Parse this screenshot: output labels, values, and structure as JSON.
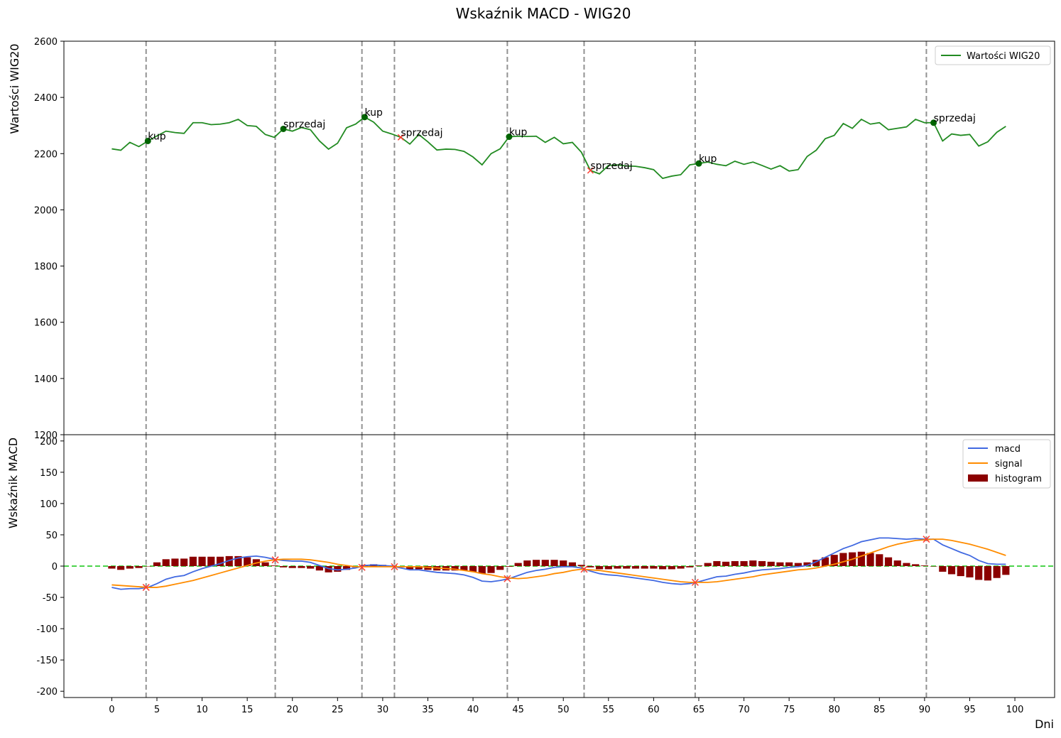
{
  "chart_data": {
    "type": "line",
    "title": "Wskaźnik MACD - WIG20",
    "xlabel": "Dni",
    "x_ticks": [
      0,
      5,
      10,
      15,
      20,
      25,
      30,
      35,
      40,
      45,
      50,
      55,
      60,
      65,
      70,
      75,
      80,
      85,
      90,
      95,
      100
    ],
    "xlim": [
      -5.3,
      104.4
    ],
    "signal_lines": [
      3.8,
      18.1,
      27.7,
      31.3,
      43.8,
      52.3,
      64.6,
      90.2
    ],
    "colors": {
      "wig20": "#228b22",
      "macd": "#4169e1",
      "signal": "#ff8c00",
      "histogram": "#8b0000",
      "zero_line": "#32cd32",
      "vertical_lines": "#808080",
      "marker_buy": "#006400",
      "marker_cross": "#ff3b30"
    },
    "top": {
      "ylabel": "Wartości WIG20",
      "ylim": [
        1200,
        2600
      ],
      "y_ticks": [
        1200,
        1400,
        1600,
        1800,
        2000,
        2200,
        2400,
        2600
      ],
      "legend": [
        "Wartości WIG20"
      ],
      "legend_position": "top-right",
      "series": [
        {
          "name": "Wartości WIG20",
          "x": [
            0,
            1,
            2,
            3,
            4,
            5,
            6,
            7,
            8,
            9,
            10,
            11,
            12,
            13,
            14,
            15,
            16,
            17,
            18,
            19,
            20,
            21,
            22,
            23,
            24,
            25,
            26,
            27,
            28,
            29,
            30,
            31,
            32,
            33,
            34,
            35,
            36,
            37,
            38,
            39,
            40,
            41,
            42,
            43,
            44,
            45,
            46,
            47,
            48,
            49,
            50,
            51,
            52,
            53,
            54,
            55,
            56,
            57,
            58,
            59,
            60,
            61,
            62,
            63,
            64,
            65,
            66,
            67,
            68,
            69,
            70,
            71,
            72,
            73,
            74,
            75,
            76,
            77,
            78,
            79,
            80,
            81,
            82,
            83,
            84,
            85,
            86,
            87,
            88,
            89,
            90,
            91,
            92,
            93,
            94,
            95,
            96,
            97,
            98,
            99
          ],
          "values": [
            2217,
            2212,
            2240,
            2225,
            2245,
            2263,
            2280,
            2275,
            2272,
            2310,
            2310,
            2303,
            2305,
            2310,
            2322,
            2300,
            2297,
            2268,
            2258,
            2288,
            2280,
            2293,
            2285,
            2245,
            2216,
            2237,
            2292,
            2305,
            2330,
            2312,
            2280,
            2270,
            2258,
            2234,
            2268,
            2242,
            2213,
            2216,
            2215,
            2208,
            2188,
            2160,
            2200,
            2217,
            2260,
            2262,
            2261,
            2262,
            2240,
            2258,
            2235,
            2240,
            2205,
            2140,
            2128,
            2158,
            2160,
            2156,
            2155,
            2150,
            2143,
            2112,
            2120,
            2125,
            2160,
            2165,
            2170,
            2162,
            2157,
            2173,
            2162,
            2170,
            2158,
            2145,
            2157,
            2138,
            2143,
            2190,
            2212,
            2253,
            2265,
            2307,
            2290,
            2322,
            2305,
            2310,
            2285,
            2290,
            2295,
            2322,
            2310,
            2310,
            2245,
            2270,
            2265,
            2268,
            2227,
            2242,
            2276,
            2297
          ]
        }
      ],
      "annotations": [
        {
          "x": 4,
          "y": 2245,
          "text": "kup",
          "marker": "dot"
        },
        {
          "x": 19,
          "y": 2288,
          "text": "sprzedaj",
          "marker": "dot"
        },
        {
          "x": 28,
          "y": 2330,
          "text": "kup",
          "marker": "dot"
        },
        {
          "x": 32,
          "y": 2258,
          "text": "sprzedaj",
          "marker": "x"
        },
        {
          "x": 44,
          "y": 2260,
          "text": "kup",
          "marker": "dot"
        },
        {
          "x": 53,
          "y": 2140,
          "text": "sprzedaj",
          "marker": "x"
        },
        {
          "x": 65,
          "y": 2165,
          "text": "kup",
          "marker": "dot"
        },
        {
          "x": 91,
          "y": 2310,
          "text": "sprzedaj",
          "marker": "dot"
        }
      ]
    },
    "bottom": {
      "ylabel": "Wskaźnik MACD",
      "ylim": [
        -210,
        210
      ],
      "y_ticks": [
        -200,
        -150,
        -100,
        -50,
        0,
        50,
        100,
        150,
        200
      ],
      "legend": [
        "macd",
        "signal",
        "histogram"
      ],
      "legend_position": "top-right",
      "series": [
        {
          "name": "macd",
          "x": [
            0,
            1,
            2,
            3,
            4,
            5,
            6,
            7,
            8,
            9,
            10,
            11,
            12,
            13,
            14,
            15,
            16,
            17,
            18,
            19,
            20,
            21,
            22,
            23,
            24,
            25,
            26,
            27,
            28,
            29,
            30,
            31,
            32,
            33,
            34,
            35,
            36,
            37,
            38,
            39,
            40,
            41,
            42,
            43,
            44,
            45,
            46,
            47,
            48,
            49,
            50,
            51,
            52,
            53,
            54,
            55,
            56,
            57,
            58,
            59,
            60,
            61,
            62,
            63,
            64,
            65,
            66,
            67,
            68,
            69,
            70,
            71,
            72,
            73,
            74,
            75,
            76,
            77,
            78,
            79,
            80,
            81,
            82,
            83,
            84,
            85,
            86,
            87,
            88,
            89,
            90,
            91,
            92,
            93,
            94,
            95,
            96,
            97,
            98,
            99
          ],
          "values": [
            -34,
            -37,
            -36,
            -36,
            -34,
            -28,
            -21,
            -17,
            -15,
            -9,
            -4,
            0,
            4,
            9,
            13,
            15,
            16,
            14,
            11,
            9,
            8,
            8,
            6,
            1,
            -4,
            -6,
            -5,
            -3,
            1,
            2,
            1,
            0,
            -3,
            -6,
            -6,
            -8,
            -10,
            -11,
            -12,
            -14,
            -18,
            -24,
            -25,
            -23,
            -20,
            -15,
            -10,
            -7,
            -5,
            -2,
            -1,
            -1,
            -3,
            -8,
            -12,
            -14,
            -15,
            -17,
            -19,
            -21,
            -23,
            -26,
            -28,
            -29,
            -28,
            -25,
            -21,
            -17,
            -16,
            -13,
            -11,
            -8,
            -6,
            -5,
            -4,
            -2,
            -1,
            1,
            7,
            14,
            21,
            28,
            33,
            39,
            42,
            45,
            45,
            44,
            43,
            44,
            43,
            43,
            34,
            28,
            22,
            17,
            9,
            4,
            3,
            3
          ]
        },
        {
          "name": "signal",
          "x": [
            0,
            1,
            2,
            3,
            4,
            5,
            6,
            7,
            8,
            9,
            10,
            11,
            12,
            13,
            14,
            15,
            16,
            17,
            18,
            19,
            20,
            21,
            22,
            23,
            24,
            25,
            26,
            27,
            28,
            29,
            30,
            31,
            32,
            33,
            34,
            35,
            36,
            37,
            38,
            39,
            40,
            41,
            42,
            43,
            44,
            45,
            46,
            47,
            48,
            49,
            50,
            51,
            52,
            53,
            54,
            55,
            56,
            57,
            58,
            59,
            60,
            61,
            62,
            63,
            64,
            65,
            66,
            67,
            68,
            69,
            70,
            71,
            72,
            73,
            74,
            75,
            76,
            77,
            78,
            79,
            80,
            81,
            82,
            83,
            84,
            85,
            86,
            87,
            88,
            89,
            90,
            91,
            92,
            93,
            94,
            95,
            96,
            97,
            98,
            99
          ],
          "values": [
            -30,
            -31,
            -32,
            -33,
            -34,
            -34,
            -32,
            -29,
            -26,
            -23,
            -19,
            -15,
            -11,
            -7,
            -3,
            1,
            5,
            8,
            10,
            11,
            11,
            11,
            10,
            8,
            6,
            3,
            1,
            -1,
            -1,
            -1,
            -1,
            -1,
            -1,
            -1,
            -1,
            -2,
            -3,
            -4,
            -5,
            -7,
            -9,
            -12,
            -14,
            -17,
            -19,
            -20,
            -19,
            -17,
            -15,
            -12,
            -10,
            -7,
            -5,
            -6,
            -7,
            -9,
            -11,
            -13,
            -15,
            -17,
            -19,
            -21,
            -23,
            -25,
            -26,
            -26,
            -26,
            -25,
            -23,
            -21,
            -19,
            -17,
            -14,
            -12,
            -10,
            -8,
            -6,
            -5,
            -3,
            0,
            3,
            7,
            11,
            16,
            21,
            26,
            31,
            35,
            38,
            41,
            42,
            43,
            43,
            41,
            38,
            35,
            31,
            27,
            22,
            17
          ]
        },
        {
          "name": "histogram",
          "type": "bar",
          "x": [
            0,
            1,
            2,
            3,
            4,
            5,
            6,
            7,
            8,
            9,
            10,
            11,
            12,
            13,
            14,
            15,
            16,
            17,
            18,
            19,
            20,
            21,
            22,
            23,
            24,
            25,
            26,
            27,
            28,
            29,
            30,
            31,
            32,
            33,
            34,
            35,
            36,
            37,
            38,
            39,
            40,
            41,
            42,
            43,
            44,
            45,
            46,
            47,
            48,
            49,
            50,
            51,
            52,
            53,
            54,
            55,
            56,
            57,
            58,
            59,
            60,
            61,
            62,
            63,
            64,
            65,
            66,
            67,
            68,
            69,
            70,
            71,
            72,
            73,
            74,
            75,
            76,
            77,
            78,
            79,
            80,
            81,
            82,
            83,
            84,
            85,
            86,
            87,
            88,
            89,
            90,
            91,
            92,
            93,
            94,
            95,
            96,
            97,
            98,
            99
          ],
          "values": [
            -4,
            -6,
            -4,
            -3,
            0,
            6,
            11,
            12,
            12,
            15,
            15,
            15,
            15,
            16,
            16,
            14,
            11,
            6,
            1,
            -2,
            -3,
            -3,
            -4,
            -7,
            -10,
            -9,
            -6,
            -2,
            2,
            3,
            2,
            1,
            -2,
            -5,
            -5,
            -6,
            -7,
            -7,
            -7,
            -7,
            -9,
            -12,
            -11,
            -6,
            -1,
            5,
            9,
            10,
            10,
            10,
            9,
            6,
            2,
            -2,
            -5,
            -5,
            -4,
            -4,
            -4,
            -4,
            -4,
            -5,
            -5,
            -4,
            -2,
            1,
            5,
            8,
            7,
            8,
            8,
            9,
            8,
            7,
            6,
            6,
            5,
            6,
            10,
            14,
            18,
            21,
            22,
            23,
            21,
            19,
            14,
            9,
            5,
            3,
            1,
            0,
            -9,
            -13,
            -16,
            -18,
            -22,
            -23,
            -19,
            -14
          ]
        }
      ],
      "cross_points": [
        {
          "x": 3.8,
          "y": -34
        },
        {
          "x": 18.1,
          "y": 10
        },
        {
          "x": 27.7,
          "y": -2
        },
        {
          "x": 31.3,
          "y": -1
        },
        {
          "x": 43.8,
          "y": -20
        },
        {
          "x": 52.3,
          "y": -5
        },
        {
          "x": 64.6,
          "y": -26
        },
        {
          "x": 90.2,
          "y": 43
        }
      ]
    }
  }
}
